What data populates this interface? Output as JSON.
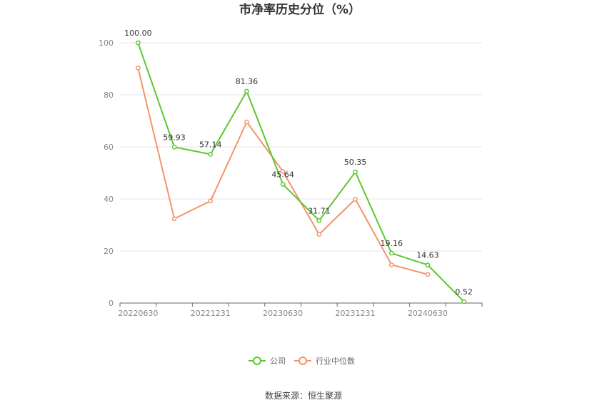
{
  "chart_data": {
    "type": "line",
    "title": "市净率历史分位（%）",
    "xlabel": "",
    "ylabel": "",
    "x": [
      "20220630",
      "20220930",
      "20221231",
      "20230331",
      "20230630",
      "20230930",
      "20231231",
      "20240331",
      "20240630",
      "20240930"
    ],
    "x_tick_labels": [
      "20220630",
      "20221231",
      "20230630",
      "20231231",
      "20240630"
    ],
    "y_ticks": [
      "0",
      "20",
      "40",
      "60",
      "80",
      "100"
    ],
    "ylim": [
      0,
      100
    ],
    "grid": true,
    "legend_position": "bottom",
    "series": [
      {
        "name": "公司",
        "color": "#5cc72f",
        "values": [
          100.0,
          59.93,
          57.14,
          81.36,
          45.64,
          31.71,
          50.35,
          19.16,
          14.63,
          0.52
        ],
        "labels": [
          "100.00",
          "59.93",
          "57.14",
          "81.36",
          "45.64",
          "31.71",
          "50.35",
          "19.16",
          "14.63",
          "0.52"
        ]
      },
      {
        "name": "行业中位数",
        "color": "#f4946a",
        "values": [
          90.3,
          32.4,
          39.2,
          69.6,
          50.6,
          26.4,
          39.9,
          14.7,
          11.0,
          null
        ]
      }
    ]
  },
  "footer": {
    "source": "数据来源：恒生聚源"
  }
}
